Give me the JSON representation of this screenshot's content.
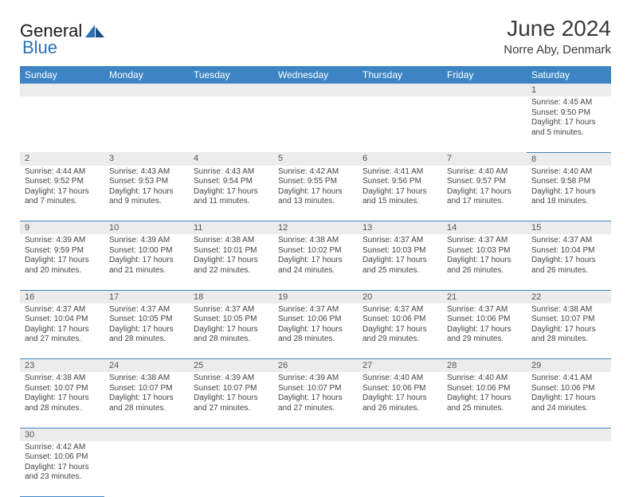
{
  "brand": {
    "name1": "General",
    "name2": "Blue"
  },
  "header": {
    "title": "June 2024",
    "location": "Norre Aby, Denmark"
  },
  "colors": {
    "header_bg": "#3d84c4",
    "header_text": "#ffffff",
    "daynum_bg": "#ececec",
    "border": "#3d84c4",
    "text": "#444444",
    "logo_blue": "#2c6fb5"
  },
  "weekdays": [
    "Sunday",
    "Monday",
    "Tuesday",
    "Wednesday",
    "Thursday",
    "Friday",
    "Saturday"
  ],
  "weeks": [
    {
      "nums": [
        "",
        "",
        "",
        "",
        "",
        "",
        "1"
      ],
      "data": [
        null,
        null,
        null,
        null,
        null,
        null,
        {
          "sunrise": "Sunrise: 4:45 AM",
          "sunset": "Sunset: 9:50 PM",
          "day1": "Daylight: 17 hours",
          "day2": "and 5 minutes."
        }
      ]
    },
    {
      "nums": [
        "2",
        "3",
        "4",
        "5",
        "6",
        "7",
        "8"
      ],
      "data": [
        {
          "sunrise": "Sunrise: 4:44 AM",
          "sunset": "Sunset: 9:52 PM",
          "day1": "Daylight: 17 hours",
          "day2": "and 7 minutes."
        },
        {
          "sunrise": "Sunrise: 4:43 AM",
          "sunset": "Sunset: 9:53 PM",
          "day1": "Daylight: 17 hours",
          "day2": "and 9 minutes."
        },
        {
          "sunrise": "Sunrise: 4:43 AM",
          "sunset": "Sunset: 9:54 PM",
          "day1": "Daylight: 17 hours",
          "day2": "and 11 minutes."
        },
        {
          "sunrise": "Sunrise: 4:42 AM",
          "sunset": "Sunset: 9:55 PM",
          "day1": "Daylight: 17 hours",
          "day2": "and 13 minutes."
        },
        {
          "sunrise": "Sunrise: 4:41 AM",
          "sunset": "Sunset: 9:56 PM",
          "day1": "Daylight: 17 hours",
          "day2": "and 15 minutes."
        },
        {
          "sunrise": "Sunrise: 4:40 AM",
          "sunset": "Sunset: 9:57 PM",
          "day1": "Daylight: 17 hours",
          "day2": "and 17 minutes."
        },
        {
          "sunrise": "Sunrise: 4:40 AM",
          "sunset": "Sunset: 9:58 PM",
          "day1": "Daylight: 17 hours",
          "day2": "and 18 minutes."
        }
      ]
    },
    {
      "nums": [
        "9",
        "10",
        "11",
        "12",
        "13",
        "14",
        "15"
      ],
      "data": [
        {
          "sunrise": "Sunrise: 4:39 AM",
          "sunset": "Sunset: 9:59 PM",
          "day1": "Daylight: 17 hours",
          "day2": "and 20 minutes."
        },
        {
          "sunrise": "Sunrise: 4:39 AM",
          "sunset": "Sunset: 10:00 PM",
          "day1": "Daylight: 17 hours",
          "day2": "and 21 minutes."
        },
        {
          "sunrise": "Sunrise: 4:38 AM",
          "sunset": "Sunset: 10:01 PM",
          "day1": "Daylight: 17 hours",
          "day2": "and 22 minutes."
        },
        {
          "sunrise": "Sunrise: 4:38 AM",
          "sunset": "Sunset: 10:02 PM",
          "day1": "Daylight: 17 hours",
          "day2": "and 24 minutes."
        },
        {
          "sunrise": "Sunrise: 4:37 AM",
          "sunset": "Sunset: 10:03 PM",
          "day1": "Daylight: 17 hours",
          "day2": "and 25 minutes."
        },
        {
          "sunrise": "Sunrise: 4:37 AM",
          "sunset": "Sunset: 10:03 PM",
          "day1": "Daylight: 17 hours",
          "day2": "and 26 minutes."
        },
        {
          "sunrise": "Sunrise: 4:37 AM",
          "sunset": "Sunset: 10:04 PM",
          "day1": "Daylight: 17 hours",
          "day2": "and 26 minutes."
        }
      ]
    },
    {
      "nums": [
        "16",
        "17",
        "18",
        "19",
        "20",
        "21",
        "22"
      ],
      "data": [
        {
          "sunrise": "Sunrise: 4:37 AM",
          "sunset": "Sunset: 10:04 PM",
          "day1": "Daylight: 17 hours",
          "day2": "and 27 minutes."
        },
        {
          "sunrise": "Sunrise: 4:37 AM",
          "sunset": "Sunset: 10:05 PM",
          "day1": "Daylight: 17 hours",
          "day2": "and 28 minutes."
        },
        {
          "sunrise": "Sunrise: 4:37 AM",
          "sunset": "Sunset: 10:05 PM",
          "day1": "Daylight: 17 hours",
          "day2": "and 28 minutes."
        },
        {
          "sunrise": "Sunrise: 4:37 AM",
          "sunset": "Sunset: 10:06 PM",
          "day1": "Daylight: 17 hours",
          "day2": "and 28 minutes."
        },
        {
          "sunrise": "Sunrise: 4:37 AM",
          "sunset": "Sunset: 10:06 PM",
          "day1": "Daylight: 17 hours",
          "day2": "and 29 minutes."
        },
        {
          "sunrise": "Sunrise: 4:37 AM",
          "sunset": "Sunset: 10:06 PM",
          "day1": "Daylight: 17 hours",
          "day2": "and 29 minutes."
        },
        {
          "sunrise": "Sunrise: 4:38 AM",
          "sunset": "Sunset: 10:07 PM",
          "day1": "Daylight: 17 hours",
          "day2": "and 28 minutes."
        }
      ]
    },
    {
      "nums": [
        "23",
        "24",
        "25",
        "26",
        "27",
        "28",
        "29"
      ],
      "data": [
        {
          "sunrise": "Sunrise: 4:38 AM",
          "sunset": "Sunset: 10:07 PM",
          "day1": "Daylight: 17 hours",
          "day2": "and 28 minutes."
        },
        {
          "sunrise": "Sunrise: 4:38 AM",
          "sunset": "Sunset: 10:07 PM",
          "day1": "Daylight: 17 hours",
          "day2": "and 28 minutes."
        },
        {
          "sunrise": "Sunrise: 4:39 AM",
          "sunset": "Sunset: 10:07 PM",
          "day1": "Daylight: 17 hours",
          "day2": "and 27 minutes."
        },
        {
          "sunrise": "Sunrise: 4:39 AM",
          "sunset": "Sunset: 10:07 PM",
          "day1": "Daylight: 17 hours",
          "day2": "and 27 minutes."
        },
        {
          "sunrise": "Sunrise: 4:40 AM",
          "sunset": "Sunset: 10:06 PM",
          "day1": "Daylight: 17 hours",
          "day2": "and 26 minutes."
        },
        {
          "sunrise": "Sunrise: 4:40 AM",
          "sunset": "Sunset: 10:06 PM",
          "day1": "Daylight: 17 hours",
          "day2": "and 25 minutes."
        },
        {
          "sunrise": "Sunrise: 4:41 AM",
          "sunset": "Sunset: 10:06 PM",
          "day1": "Daylight: 17 hours",
          "day2": "and 24 minutes."
        }
      ]
    },
    {
      "nums": [
        "30",
        "",
        "",
        "",
        "",
        "",
        ""
      ],
      "data": [
        {
          "sunrise": "Sunrise: 4:42 AM",
          "sunset": "Sunset: 10:06 PM",
          "day1": "Daylight: 17 hours",
          "day2": "and 23 minutes."
        },
        null,
        null,
        null,
        null,
        null,
        null
      ]
    }
  ]
}
